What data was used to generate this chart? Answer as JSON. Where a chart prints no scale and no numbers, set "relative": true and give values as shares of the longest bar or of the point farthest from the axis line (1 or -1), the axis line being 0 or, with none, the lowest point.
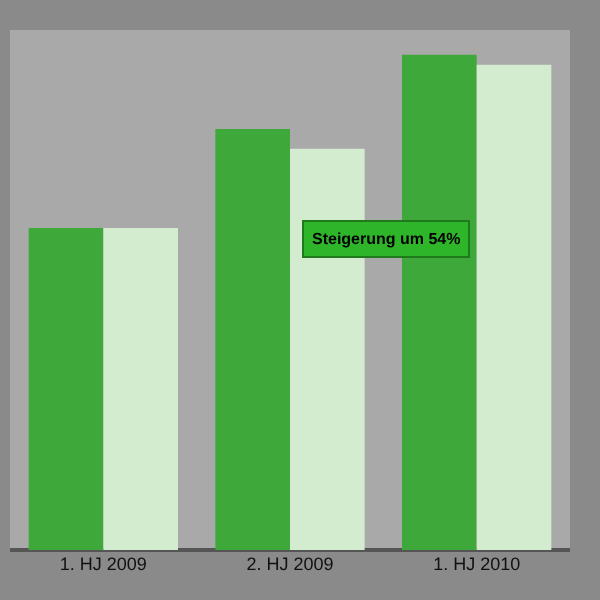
{
  "chart_data": {
    "type": "bar",
    "relative": true,
    "categories": [
      "1. HJ 2009",
      "2. HJ 2009",
      "1. HJ 2010"
    ],
    "series": [
      {
        "color": "#3fa83a",
        "values": [
          0.65,
          0.85,
          1.0
        ]
      },
      {
        "color": "#d3ebcf",
        "values": [
          0.65,
          0.81,
          0.98
        ]
      }
    ],
    "annotations": [
      "Steigerung um 54%"
    ]
  }
}
